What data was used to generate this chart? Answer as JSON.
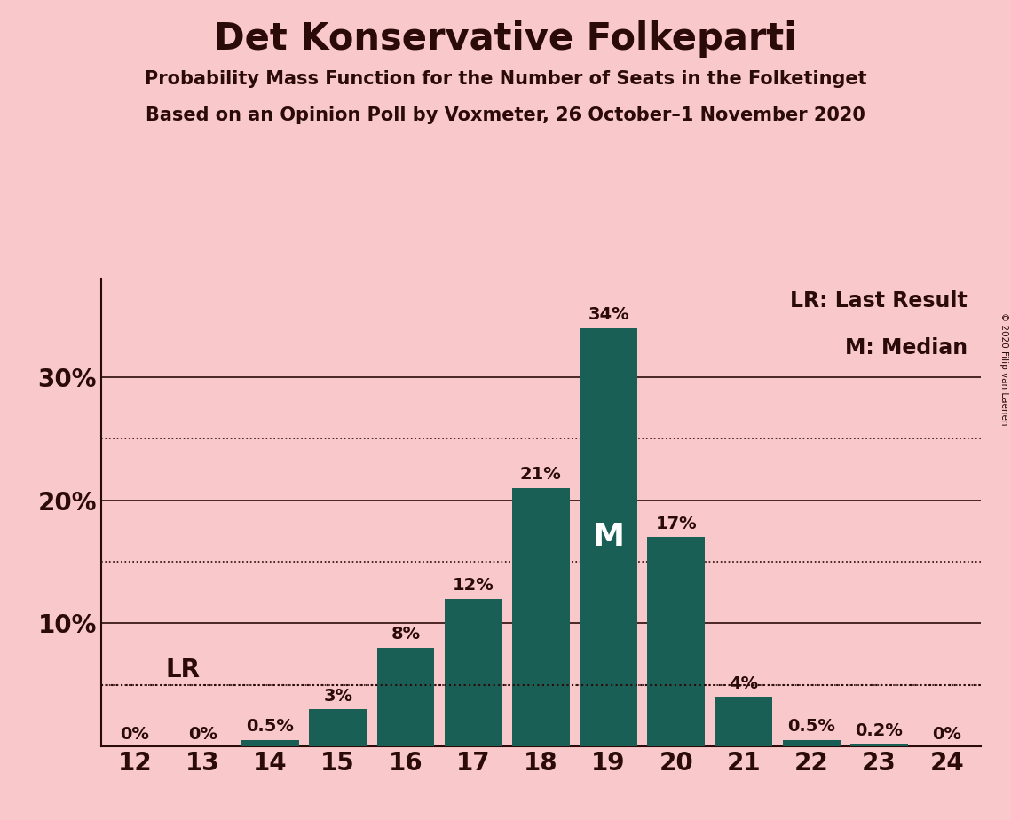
{
  "title": "Det Konservative Folkeparti",
  "subtitle1": "Probability Mass Function for the Number of Seats in the Folketinget",
  "subtitle2": "Based on an Opinion Poll by Voxmeter, 26 October–1 November 2020",
  "copyright": "© 2020 Filip van Laenen",
  "seats": [
    12,
    13,
    14,
    15,
    16,
    17,
    18,
    19,
    20,
    21,
    22,
    23,
    24
  ],
  "probabilities": [
    0.0,
    0.0,
    0.5,
    3.0,
    8.0,
    12.0,
    21.0,
    34.0,
    17.0,
    4.0,
    0.5,
    0.2,
    0.0
  ],
  "labels": [
    "0%",
    "0%",
    "0.5%",
    "3%",
    "8%",
    "12%",
    "21%",
    "34%",
    "17%",
    "4%",
    "0.5%",
    "0.2%",
    "0%"
  ],
  "bar_color": "#1a5f56",
  "background_color": "#f9c8cb",
  "text_color": "#2b0a0a",
  "lr_value": 5.0,
  "median_seat": 19,
  "yticks": [
    10,
    20,
    30
  ],
  "ytick_labels": [
    "10%",
    "20%",
    "30%"
  ],
  "solid_lines": [
    10,
    20,
    30
  ],
  "dotted_lines": [
    5.0,
    15.0,
    25.0
  ],
  "ylim": [
    0,
    38
  ],
  "legend_lr": "LR: Last Result",
  "legend_m": "M: Median",
  "lr_label": "LR",
  "median_label": "M",
  "title_fontsize": 30,
  "subtitle_fontsize": 15,
  "tick_fontsize": 20,
  "label_fontsize": 14,
  "legend_fontsize": 17
}
